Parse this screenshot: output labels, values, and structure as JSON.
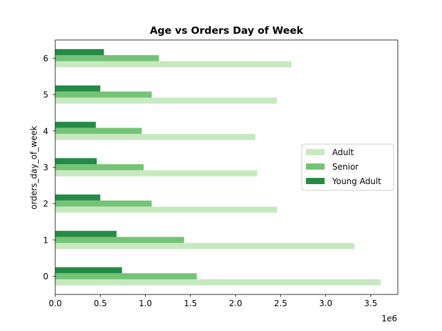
{
  "chart_data": {
    "type": "bar",
    "orientation": "horizontal",
    "title": "Age vs Orders Day of Week",
    "xlabel": "",
    "ylabel": "orders_day_of_week",
    "offset_label": "1e6",
    "categories": [
      "0",
      "1",
      "2",
      "3",
      "4",
      "5",
      "6"
    ],
    "xlim": [
      0,
      3800000
    ],
    "x_ticks": [
      0,
      500000,
      1000000,
      1500000,
      2000000,
      2500000,
      3000000,
      3500000
    ],
    "x_tick_labels": [
      "0.0",
      "0.5",
      "1.0",
      "1.5",
      "2.0",
      "2.5",
      "3.0",
      "3.5"
    ],
    "grid": false,
    "legend_position": "center-right",
    "series": [
      {
        "name": "Adult",
        "color": "#c7e9c0",
        "values": [
          3610000,
          3320000,
          2460000,
          2240000,
          2220000,
          2460000,
          2620000
        ]
      },
      {
        "name": "Senior",
        "color": "#74c476",
        "values": [
          1570000,
          1430000,
          1070000,
          980000,
          960000,
          1070000,
          1150000
        ]
      },
      {
        "name": "Young Adult",
        "color": "#238b45",
        "values": [
          740000,
          680000,
          500000,
          460000,
          450000,
          500000,
          540000
        ]
      }
    ]
  }
}
